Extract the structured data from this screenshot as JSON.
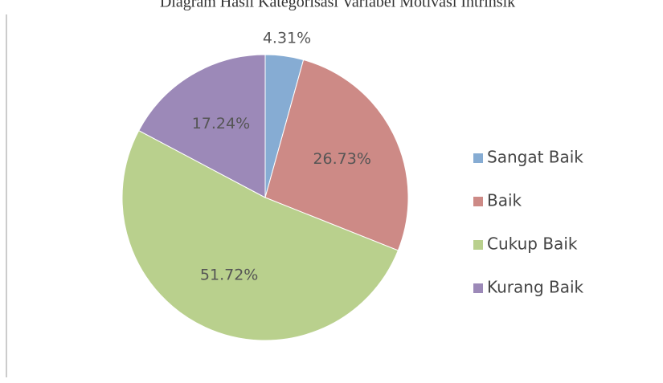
{
  "chart_data": {
    "type": "pie",
    "title": "Diagram Hasil Kategorisasi Variabel Motivasi Intrinsik",
    "categories": [
      "Sangat Baik",
      "Baik",
      "Cukup Baik",
      "Kurang Baik"
    ],
    "values": [
      4.31,
      26.73,
      51.72,
      17.24
    ],
    "value_labels": [
      "4.31%",
      "26.73%",
      "51.72%",
      "17.24%"
    ],
    "colors": [
      "#86acd3",
      "#cd8a86",
      "#b9d08d",
      "#9c89b8"
    ],
    "legend": "right"
  }
}
